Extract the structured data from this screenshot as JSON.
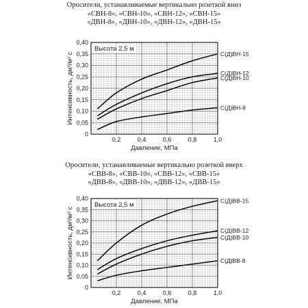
{
  "captions": [
    {
      "line1": "Оросители, устанавливаемые вертикально розеткой вниз",
      "line2": "«СВН-8», «СВН-10», «СВН-12», «СВН-15»",
      "line3": "«ДВН-8», «ДВН-10», «ДВН-12», «ДВН-15»"
    },
    {
      "line1": "Оросители, устанавливаемые вертикально розеткой вверх",
      "line2": "«СВВ-8», «СВВ-10», «СВВ-12», «СВВ-15»",
      "line3": "«ДВВ-8», «ДВВ-10», «ДВВ-12», «ДВВ-15»"
    }
  ],
  "chart_data": [
    {
      "type": "line",
      "note": "Высота 2,5 м",
      "xlabel": "Давление, МПа",
      "ylabel": "Интенсивность, дм³/м² с",
      "xlim": [
        0,
        1.0
      ],
      "ylim": [
        0,
        0.4
      ],
      "xticks": [
        0.2,
        0.4,
        0.6,
        0.8,
        1.0
      ],
      "xtick_labels": [
        "0,2",
        "0,4",
        "0,6",
        "0,8",
        "1,0"
      ],
      "yticks": [
        0,
        0.05,
        0.1,
        0.15,
        0.2,
        0.25,
        0.3,
        0.35,
        0.4
      ],
      "ytick_labels": [
        "0",
        "0,05",
        "0,10",
        "0,15",
        "0,20",
        "0,25",
        "0,30",
        "0,35",
        "0,40"
      ],
      "grid": true,
      "series": [
        {
          "name": "С(Д)ВН-15",
          "x": [
            0.05,
            0.2,
            0.4,
            0.6,
            0.8,
            1.0
          ],
          "values": [
            0.11,
            0.18,
            0.24,
            0.28,
            0.32,
            0.35
          ]
        },
        {
          "name": "С(Д)ВН-12",
          "x": [
            0.05,
            0.2,
            0.4,
            0.6,
            0.8,
            1.0
          ],
          "values": [
            0.08,
            0.13,
            0.18,
            0.22,
            0.25,
            0.265
          ]
        },
        {
          "name": "С(Д)ВН-10",
          "x": [
            0.05,
            0.2,
            0.4,
            0.6,
            0.8,
            1.0
          ],
          "values": [
            0.065,
            0.11,
            0.155,
            0.19,
            0.225,
            0.245
          ]
        },
        {
          "name": "С(Д)ВН-8",
          "x": [
            0.05,
            0.2,
            0.4,
            0.6,
            0.8,
            1.0
          ],
          "values": [
            0.02,
            0.055,
            0.075,
            0.09,
            0.105,
            0.115
          ]
        }
      ]
    },
    {
      "type": "line",
      "note": "Высота 2,5 м",
      "xlabel": "Давление, МПа",
      "ylabel": "Интенсивность, дм³/м² с",
      "xlim": [
        0,
        1.0
      ],
      "ylim": [
        0,
        0.4
      ],
      "xticks": [
        0.2,
        0.4,
        0.6,
        0.8,
        1.0
      ],
      "xtick_labels": [
        "0,2",
        "0,4",
        "0,6",
        "0,8",
        "1,0"
      ],
      "yticks": [
        0,
        0.05,
        0.1,
        0.15,
        0.2,
        0.25,
        0.3,
        0.35,
        0.4
      ],
      "ytick_labels": [
        "0",
        "0,05",
        "0,10",
        "0,15",
        "0,20",
        "0,25",
        "0,30",
        "0,35",
        "0,40"
      ],
      "grid": true,
      "series": [
        {
          "name": "С(Д)ВВ-15",
          "x": [
            0.05,
            0.2,
            0.4,
            0.6,
            0.8,
            1.0
          ],
          "values": [
            0.12,
            0.2,
            0.28,
            0.33,
            0.365,
            0.39
          ]
        },
        {
          "name": "С(Д)ВВ-12",
          "x": [
            0.05,
            0.2,
            0.4,
            0.6,
            0.8,
            1.0
          ],
          "values": [
            0.08,
            0.13,
            0.175,
            0.21,
            0.235,
            0.255
          ]
        },
        {
          "name": "С(Д)ВВ-10",
          "x": [
            0.05,
            0.2,
            0.4,
            0.6,
            0.8,
            1.0
          ],
          "values": [
            0.06,
            0.105,
            0.15,
            0.185,
            0.21,
            0.225
          ]
        },
        {
          "name": "С(Д)ВВ-8",
          "x": [
            0.05,
            0.2,
            0.4,
            0.6,
            0.8,
            1.0
          ],
          "values": [
            0.03,
            0.055,
            0.075,
            0.09,
            0.105,
            0.12
          ]
        }
      ]
    }
  ]
}
